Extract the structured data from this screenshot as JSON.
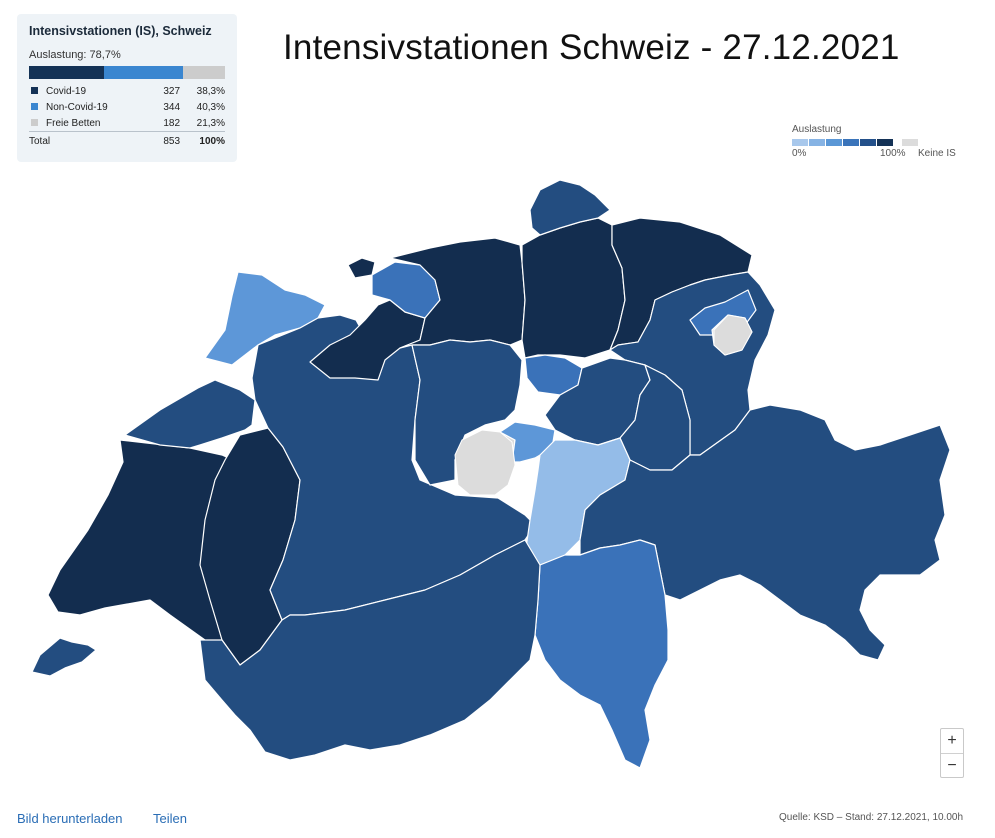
{
  "card": {
    "title": "Intensivstationen (IS), Schweiz",
    "util_label": "Auslastung: 78,7%",
    "rows": [
      {
        "label": "Covid-19",
        "count": "327",
        "pct": "38,3%",
        "color": "#143256",
        "share": 0.383
      },
      {
        "label": "Non-Covid-19",
        "count": "344",
        "pct": "40,3%",
        "color": "#3a86d0",
        "share": 0.403
      },
      {
        "label": "Freie Betten",
        "count": "182",
        "pct": "21,3%",
        "color": "#cccccc",
        "share": 0.213
      }
    ],
    "total": {
      "label": "Total",
      "count": "853",
      "pct": "100%"
    }
  },
  "headline": "Intensivstationen Schweiz - 27.12.2021",
  "legend": {
    "title": "Auslastung",
    "min": "0%",
    "max": "100%",
    "none": "Keine IS",
    "scale_colors": [
      "#a8c8ec",
      "#86b3e4",
      "#5a97d6",
      "#3a74ba",
      "#23508a",
      "#143256"
    ],
    "none_color": "#dcdcdc"
  },
  "colors": {
    "darkest": "#132d4f",
    "dark": "#234d80",
    "mid": "#3a72b9",
    "light": "#5d97d8",
    "lighter": "#94bce8",
    "none": "#dcdcdc"
  },
  "zoom": {
    "plus": "+",
    "minus": "−"
  },
  "footer": {
    "download": "Bild herunterladen",
    "share": "Teilen",
    "source": "Quelle: KSD – Stand: 27.12.2021, 10.00h"
  }
}
